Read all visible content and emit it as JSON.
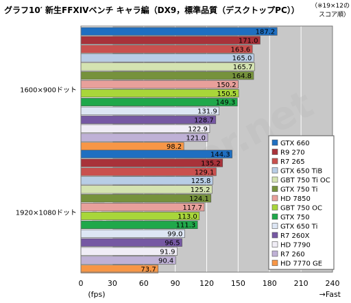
{
  "title": "グラフ10′ 新生FFXIVベンチ キャラ編（DX9，標準品質（デスクトップPC））",
  "note_line1": "（※19×12の",
  "note_line2": "スコア順）",
  "watermark": "4Gamer.net",
  "chart_data": {
    "type": "bar",
    "orientation": "horizontal",
    "groups": [
      "1600×900ドット",
      "1920×1080ドット"
    ],
    "series": [
      {
        "name": "GTX 660",
        "color": "#1f6fc1",
        "values": [
          187.2,
          144.3
        ]
      },
      {
        "name": "R9 270",
        "color": "#a8323a",
        "values": [
          171.0,
          135.2
        ]
      },
      {
        "name": "R7 265",
        "color": "#c9504e",
        "values": [
          163.6,
          129.1
        ]
      },
      {
        "name": "GTX 650 TiB",
        "color": "#b8cde6",
        "values": [
          165.0,
          125.8
        ]
      },
      {
        "name": "GBT 750 Ti OC",
        "color": "#d4e3b1",
        "values": [
          165.7,
          125.2
        ]
      },
      {
        "name": "GTX 750 Ti",
        "color": "#76923c",
        "values": [
          164.8,
          124.1
        ]
      },
      {
        "name": "HD 7850",
        "color": "#e8a09b",
        "values": [
          150.2,
          117.7
        ]
      },
      {
        "name": "GBT 750 OC",
        "color": "#a8d63a",
        "values": [
          150.5,
          113.0
        ]
      },
      {
        "name": "GTX 750",
        "color": "#1fa84a",
        "values": [
          149.3,
          111.3
        ]
      },
      {
        "name": "GTX 650 Ti",
        "color": "#dde6f4",
        "values": [
          131.9,
          99.0
        ]
      },
      {
        "name": "R7 260X",
        "color": "#7658a3",
        "values": [
          128.7,
          96.5
        ]
      },
      {
        "name": "HD 7790",
        "color": "#f0edf6",
        "values": [
          122.9,
          91.9
        ]
      },
      {
        "name": "R7 260",
        "color": "#bfb1d6",
        "values": [
          121.0,
          90.4
        ]
      },
      {
        "name": "HD 7770 GE",
        "color": "#f79646",
        "values": [
          98.2,
          73.7
        ]
      }
    ],
    "xlim": [
      0,
      240
    ],
    "xticks": [
      0,
      30,
      60,
      90,
      120,
      150,
      180,
      210,
      240
    ],
    "xlabel": "(fps)",
    "xlabel_right": "→Fast",
    "grid": true,
    "legend_position": "right-bottom"
  }
}
